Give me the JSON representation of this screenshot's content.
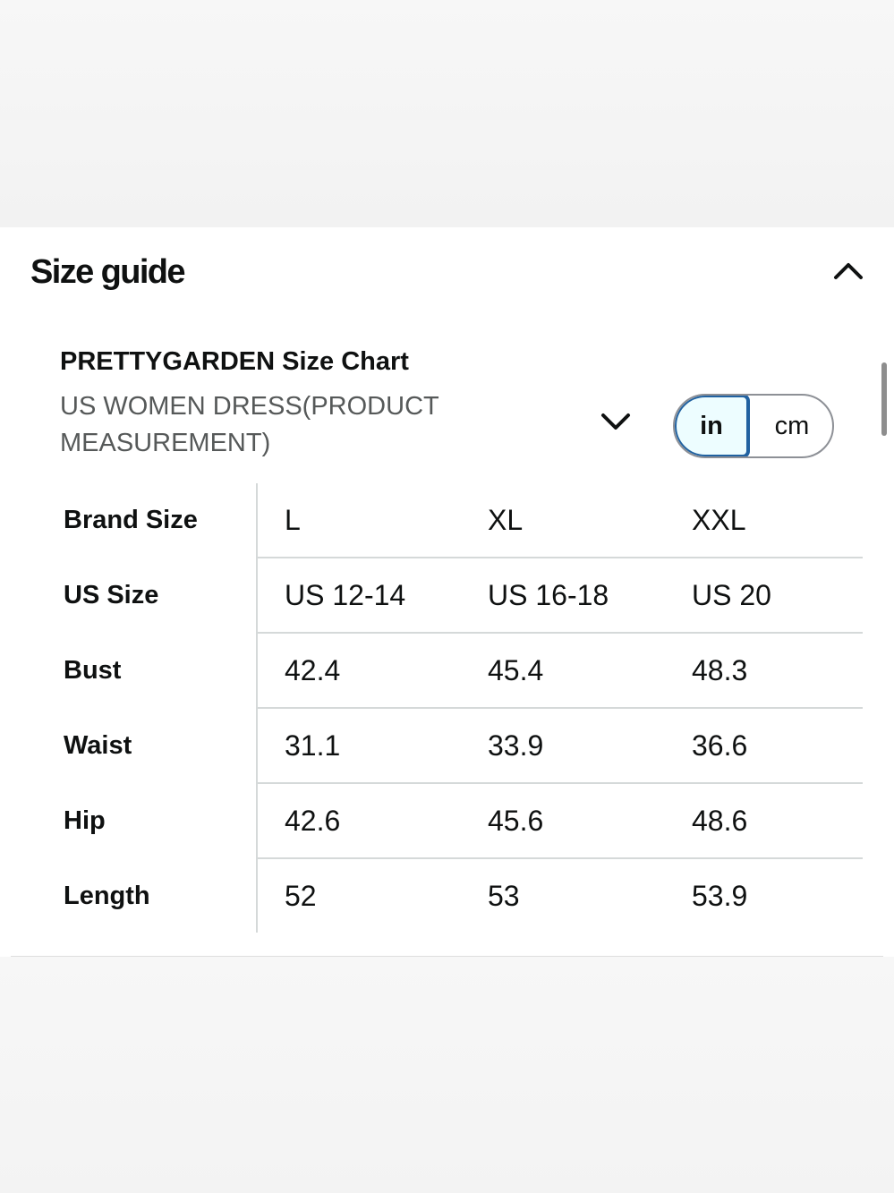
{
  "header": {
    "title": "Size guide"
  },
  "chart": {
    "title": "PRETTYGARDEN Size Chart",
    "subtitle": "US WOMEN DRESS(PRODUCT MEASUREMENT)"
  },
  "units": {
    "options": [
      "in",
      "cm"
    ],
    "selected": "in"
  },
  "icons": {
    "collapse": "chevron-up-icon",
    "dropdown": "chevron-down-icon"
  },
  "colors": {
    "selected_border": "#2162a1",
    "selected_fill": "#edfdff",
    "text": "#0f1111",
    "muted_text": "#565959",
    "divider": "#d5d9d9"
  },
  "table": {
    "rows": [
      {
        "label": "Brand Size",
        "values": [
          "L",
          "XL",
          "XXL"
        ]
      },
      {
        "label": "US Size",
        "values": [
          "US 12-14",
          "US 16-18",
          "US 20"
        ]
      },
      {
        "label": "Bust",
        "values": [
          "42.4",
          "45.4",
          "48.3"
        ]
      },
      {
        "label": "Waist",
        "values": [
          "31.1",
          "33.9",
          "36.6"
        ]
      },
      {
        "label": "Hip",
        "values": [
          "42.6",
          "45.6",
          "48.6"
        ]
      },
      {
        "label": "Length",
        "values": [
          "52",
          "53",
          "53.9"
        ]
      }
    ]
  }
}
